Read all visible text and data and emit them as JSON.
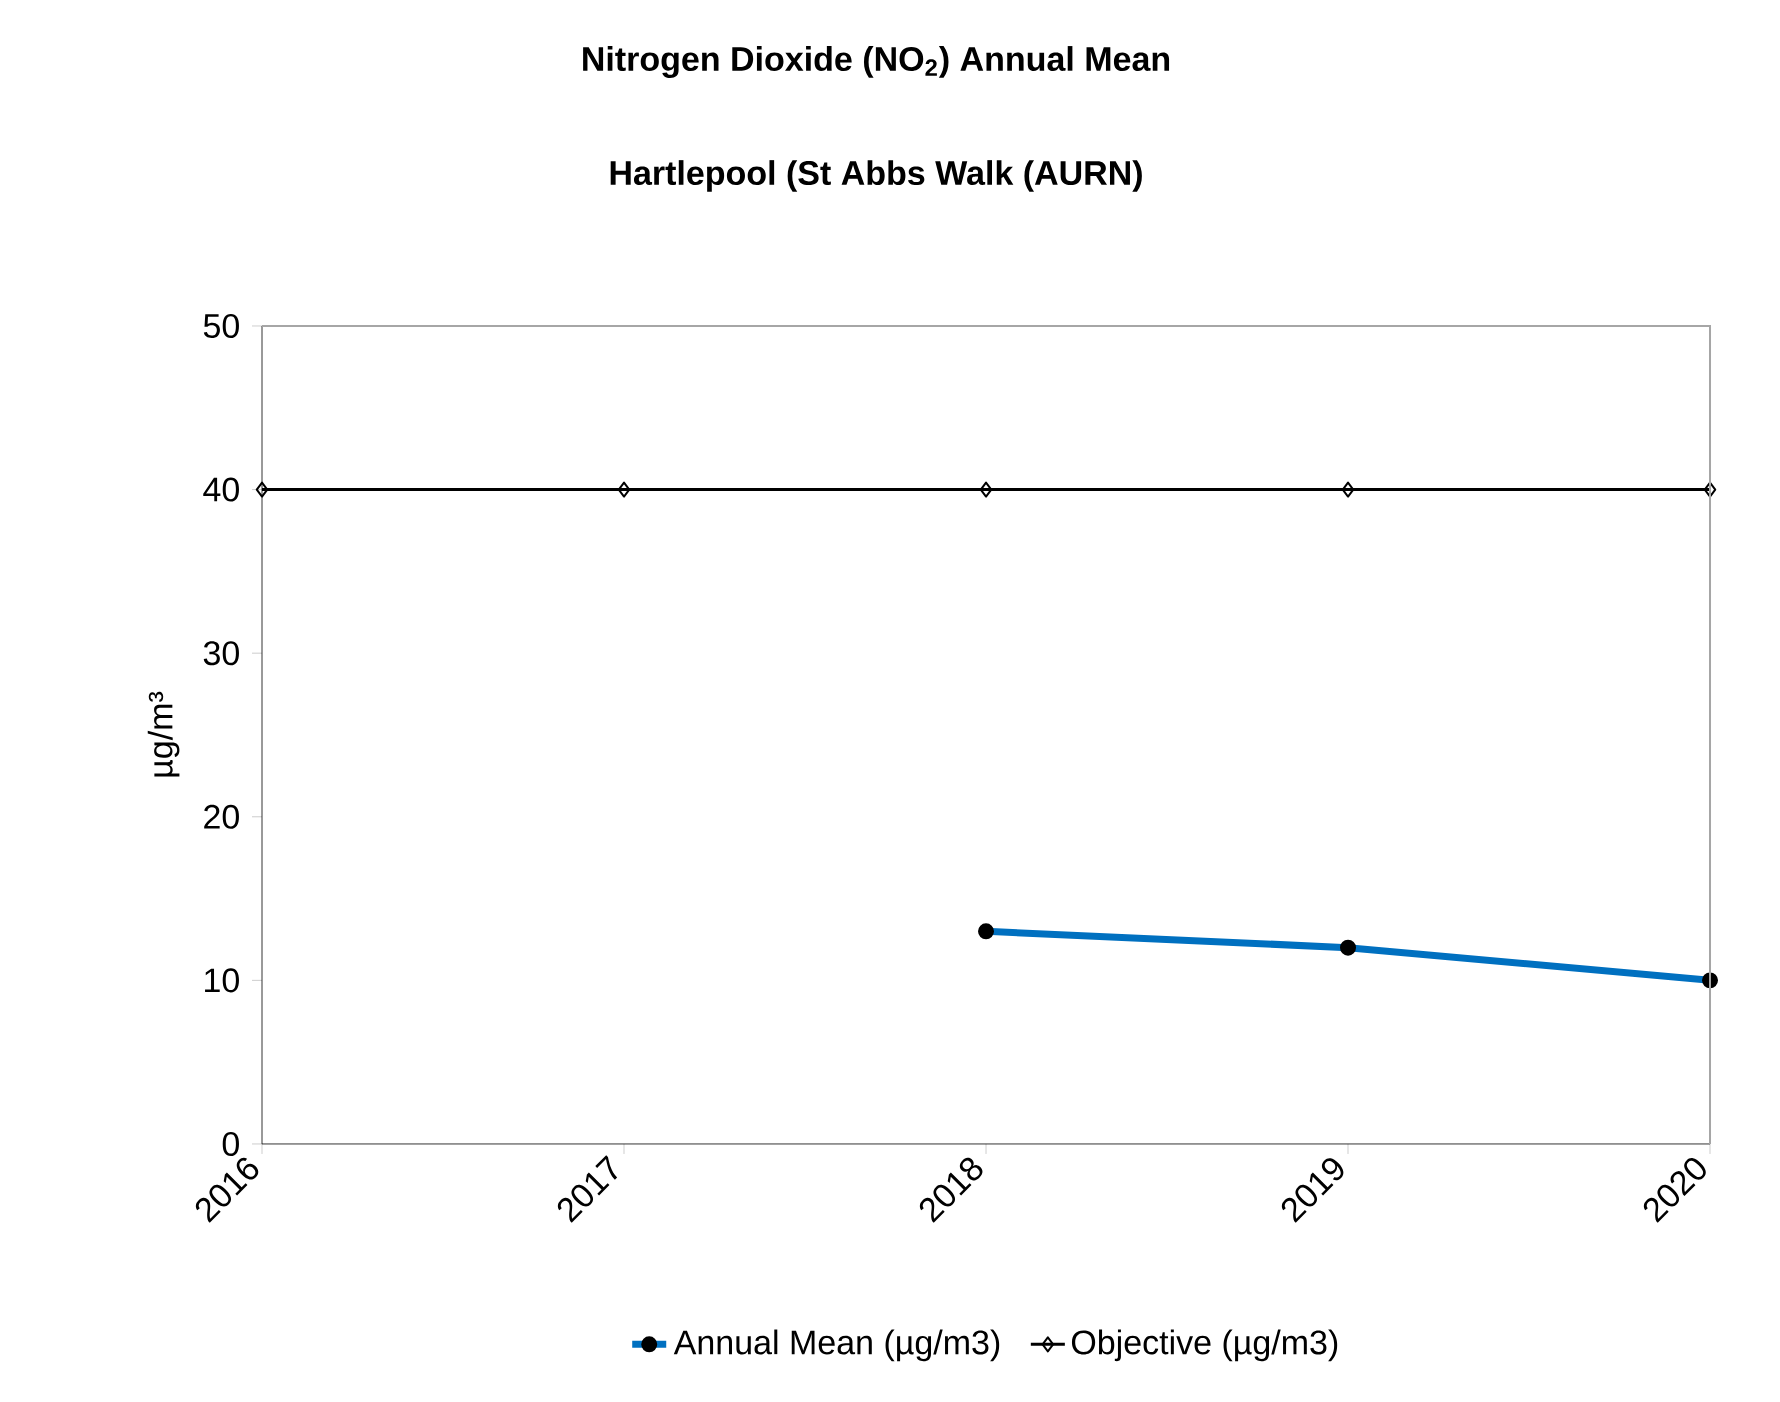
{
  "chart_data": {
    "type": "line",
    "title": "Nitrogen Dioxide (NO$_{2}$) Annual Mean",
    "subtitle": "Hartlepool (St Abbs Walk (AURN)",
    "ylabel": "µg/m³",
    "categories": [
      "2016",
      "2017",
      "2018",
      "2019",
      "2020"
    ],
    "series": [
      {
        "name": "Annual Mean (µg/m3)",
        "color": "#0070c0",
        "values": [
          null,
          null,
          13,
          12,
          10
        ],
        "marker": "circle"
      },
      {
        "name": "Objective (µg/m3)",
        "color": "#000000",
        "values": [
          40,
          40,
          40,
          40,
          40
        ],
        "marker": "diamond"
      }
    ],
    "ylim": [
      0,
      50
    ],
    "yticks": [
      0,
      10,
      20,
      30,
      40,
      50
    ],
    "grid": false,
    "legend": "bottom"
  }
}
